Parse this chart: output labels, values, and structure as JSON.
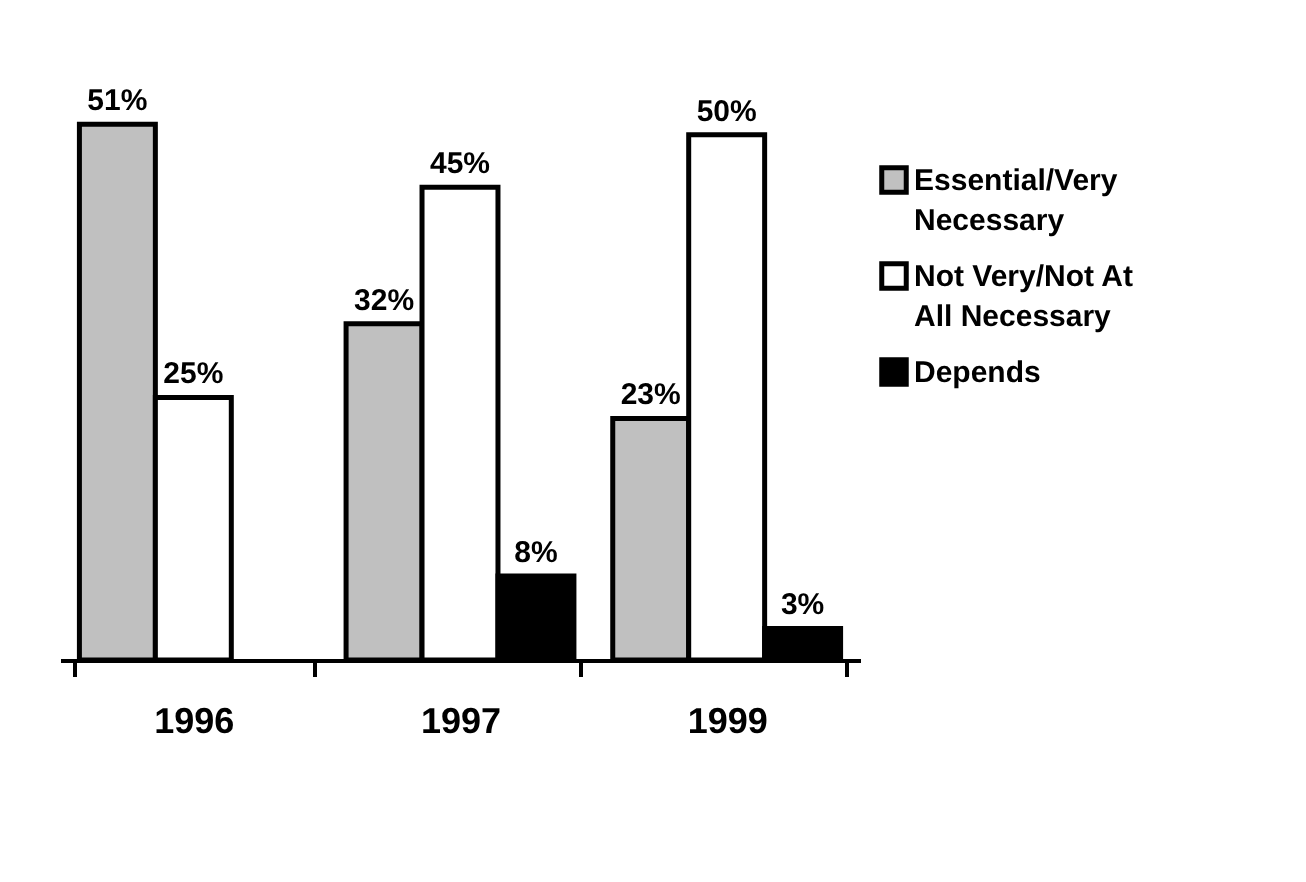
{
  "chart_data": {
    "type": "bar",
    "categories": [
      "1996",
      "1997",
      "1999"
    ],
    "series": [
      {
        "name": "Essential/Very Necessary",
        "color": "#c0c0c0",
        "values": [
          51,
          32,
          23
        ],
        "value_labels": [
          "51%",
          "32%",
          "23%"
        ]
      },
      {
        "name": "Not Very/Not At All Necessary",
        "color": "#ffffff",
        "values": [
          25,
          45,
          50
        ],
        "value_labels": [
          "25%",
          "45%",
          "50%"
        ]
      },
      {
        "name": "Depends",
        "color": "#000000",
        "values": [
          null,
          8,
          3
        ],
        "value_labels": [
          null,
          "8%",
          "3%"
        ]
      }
    ],
    "legend": "right"
  }
}
